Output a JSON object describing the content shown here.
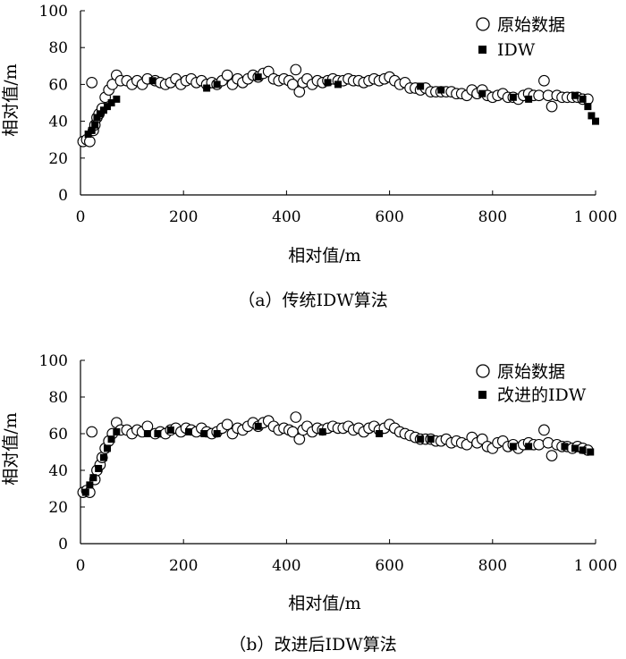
{
  "figure_captions": {
    "a": "（a）传统IDW算法",
    "b": "（b）改进后IDW算法"
  },
  "chart_data": [
    {
      "type": "scatter",
      "title": "（a）传统IDW算法",
      "xlabel": "相对值/m",
      "ylabel": "相对值/m",
      "xlim": [
        0,
        1000
      ],
      "ylim": [
        0,
        100
      ],
      "x_ticks": [
        "0",
        "200",
        "400",
        "600",
        "800",
        "1 000"
      ],
      "y_ticks": [
        "0",
        "20",
        "40",
        "60",
        "80",
        "100"
      ],
      "legend": [
        "原始数据",
        "IDW"
      ],
      "series": [
        {
          "name": "原始数据",
          "marker": "open-circle",
          "points": [
            [
              5,
              29
            ],
            [
              12,
              30
            ],
            [
              18,
              29
            ],
            [
              22,
              61
            ],
            [
              25,
              35
            ],
            [
              28,
              38
            ],
            [
              32,
              42
            ],
            [
              36,
              44
            ],
            [
              42,
              47
            ],
            [
              48,
              53
            ],
            [
              55,
              57
            ],
            [
              62,
              60
            ],
            [
              70,
              65
            ],
            [
              78,
              62
            ],
            [
              90,
              62
            ],
            [
              100,
              60
            ],
            [
              110,
              62
            ],
            [
              120,
              60
            ],
            [
              130,
              63
            ],
            [
              145,
              62
            ],
            [
              155,
              61
            ],
            [
              165,
              60
            ],
            [
              175,
              61
            ],
            [
              185,
              63
            ],
            [
              195,
              60
            ],
            [
              205,
              62
            ],
            [
              215,
              63
            ],
            [
              225,
              61
            ],
            [
              235,
              62
            ],
            [
              245,
              60
            ],
            [
              255,
              61
            ],
            [
              265,
              60
            ],
            [
              275,
              62
            ],
            [
              285,
              65
            ],
            [
              295,
              60
            ],
            [
              305,
              63
            ],
            [
              315,
              61
            ],
            [
              325,
              63
            ],
            [
              335,
              65
            ],
            [
              345,
              64
            ],
            [
              355,
              66
            ],
            [
              365,
              67
            ],
            [
              375,
              63
            ],
            [
              385,
              62
            ],
            [
              395,
              63
            ],
            [
              405,
              62
            ],
            [
              412,
              60
            ],
            [
              418,
              68
            ],
            [
              425,
              56
            ],
            [
              432,
              61
            ],
            [
              440,
              63
            ],
            [
              450,
              60
            ],
            [
              460,
              62
            ],
            [
              470,
              61
            ],
            [
              480,
              62
            ],
            [
              490,
              63
            ],
            [
              500,
              62
            ],
            [
              510,
              62
            ],
            [
              520,
              63
            ],
            [
              530,
              62
            ],
            [
              540,
              62
            ],
            [
              550,
              61
            ],
            [
              560,
              62
            ],
            [
              570,
              63
            ],
            [
              580,
              62
            ],
            [
              590,
              63
            ],
            [
              600,
              64
            ],
            [
              610,
              62
            ],
            [
              620,
              60
            ],
            [
              630,
              61
            ],
            [
              640,
              58
            ],
            [
              650,
              58
            ],
            [
              660,
              57
            ],
            [
              670,
              58
            ],
            [
              680,
              56
            ],
            [
              690,
              56
            ],
            [
              700,
              56
            ],
            [
              710,
              56
            ],
            [
              720,
              56
            ],
            [
              730,
              55
            ],
            [
              740,
              55
            ],
            [
              750,
              54
            ],
            [
              760,
              57
            ],
            [
              770,
              55
            ],
            [
              780,
              57
            ],
            [
              790,
              54
            ],
            [
              800,
              53
            ],
            [
              810,
              54
            ],
            [
              820,
              55
            ],
            [
              830,
              53
            ],
            [
              840,
              53
            ],
            [
              850,
              52
            ],
            [
              860,
              54
            ],
            [
              870,
              55
            ],
            [
              880,
              54
            ],
            [
              890,
              54
            ],
            [
              900,
              62
            ],
            [
              908,
              54
            ],
            [
              915,
              48
            ],
            [
              925,
              54
            ],
            [
              935,
              53
            ],
            [
              945,
              53
            ],
            [
              955,
              53
            ],
            [
              965,
              53
            ],
            [
              975,
              52
            ],
            [
              985,
              52
            ]
          ]
        },
        {
          "name": "IDW",
          "marker": "filled-square",
          "points": [
            [
              15,
              33
            ],
            [
              22,
              35
            ],
            [
              28,
              38
            ],
            [
              32,
              42
            ],
            [
              38,
              44
            ],
            [
              45,
              46
            ],
            [
              52,
              48
            ],
            [
              60,
              50
            ],
            [
              70,
              52
            ],
            [
              140,
              62
            ],
            [
              245,
              58
            ],
            [
              265,
              60
            ],
            [
              345,
              64
            ],
            [
              480,
              61
            ],
            [
              500,
              60
            ],
            [
              660,
              59
            ],
            [
              700,
              57
            ],
            [
              780,
              55
            ],
            [
              840,
              53
            ],
            [
              870,
              52
            ],
            [
              960,
              54
            ],
            [
              975,
              52
            ],
            [
              985,
              48
            ],
            [
              992,
              43
            ],
            [
              1000,
              40
            ]
          ]
        }
      ]
    },
    {
      "type": "scatter",
      "title": "（b）改进后IDW算法",
      "xlabel": "相对值/m",
      "ylabel": "相对值/m",
      "xlim": [
        0,
        1000
      ],
      "ylim": [
        0,
        100
      ],
      "x_ticks": [
        "0",
        "200",
        "400",
        "600",
        "800",
        "1 000"
      ],
      "y_ticks": [
        "0",
        "20",
        "40",
        "60",
        "80",
        "100"
      ],
      "legend": [
        "原始数据",
        "改进的IDW"
      ],
      "series": [
        {
          "name": "原始数据",
          "marker": "open-circle",
          "points": [
            [
              5,
              28
            ],
            [
              12,
              29
            ],
            [
              18,
              28
            ],
            [
              22,
              61
            ],
            [
              28,
              35
            ],
            [
              32,
              40
            ],
            [
              38,
              43
            ],
            [
              42,
              47
            ],
            [
              48,
              52
            ],
            [
              55,
              56
            ],
            [
              62,
              60
            ],
            [
              70,
              66
            ],
            [
              78,
              62
            ],
            [
              90,
              62
            ],
            [
              100,
              60
            ],
            [
              110,
              62
            ],
            [
              120,
              61
            ],
            [
              130,
              64
            ],
            [
              145,
              60
            ],
            [
              155,
              61
            ],
            [
              165,
              60
            ],
            [
              175,
              62
            ],
            [
              185,
              63
            ],
            [
              195,
              61
            ],
            [
              205,
              63
            ],
            [
              215,
              62
            ],
            [
              225,
              61
            ],
            [
              235,
              63
            ],
            [
              245,
              61
            ],
            [
              255,
              60
            ],
            [
              265,
              61
            ],
            [
              275,
              63
            ],
            [
              285,
              65
            ],
            [
              295,
              60
            ],
            [
              305,
              63
            ],
            [
              315,
              62
            ],
            [
              325,
              64
            ],
            [
              335,
              66
            ],
            [
              345,
              64
            ],
            [
              355,
              66
            ],
            [
              365,
              67
            ],
            [
              375,
              64
            ],
            [
              385,
              62
            ],
            [
              395,
              63
            ],
            [
              405,
              62
            ],
            [
              412,
              61
            ],
            [
              418,
              69
            ],
            [
              425,
              57
            ],
            [
              432,
              62
            ],
            [
              440,
              64
            ],
            [
              450,
              61
            ],
            [
              460,
              63
            ],
            [
              470,
              62
            ],
            [
              480,
              63
            ],
            [
              490,
              64
            ],
            [
              500,
              63
            ],
            [
              510,
              63
            ],
            [
              520,
              64
            ],
            [
              530,
              62
            ],
            [
              540,
              63
            ],
            [
              550,
              61
            ],
            [
              560,
              63
            ],
            [
              570,
              64
            ],
            [
              580,
              62
            ],
            [
              590,
              63
            ],
            [
              600,
              65
            ],
            [
              610,
              63
            ],
            [
              620,
              61
            ],
            [
              630,
              60
            ],
            [
              640,
              59
            ],
            [
              650,
              58
            ],
            [
              660,
              57
            ],
            [
              670,
              57
            ],
            [
              680,
              57
            ],
            [
              690,
              56
            ],
            [
              700,
              56
            ],
            [
              710,
              57
            ],
            [
              720,
              55
            ],
            [
              730,
              56
            ],
            [
              740,
              55
            ],
            [
              750,
              54
            ],
            [
              760,
              58
            ],
            [
              770,
              55
            ],
            [
              780,
              57
            ],
            [
              790,
              53
            ],
            [
              800,
              52
            ],
            [
              810,
              55
            ],
            [
              820,
              56
            ],
            [
              830,
              53
            ],
            [
              840,
              54
            ],
            [
              850,
              52
            ],
            [
              860,
              54
            ],
            [
              870,
              55
            ],
            [
              880,
              54
            ],
            [
              890,
              54
            ],
            [
              900,
              62
            ],
            [
              908,
              55
            ],
            [
              915,
              48
            ],
            [
              925,
              54
            ],
            [
              935,
              53
            ],
            [
              945,
              53
            ],
            [
              955,
              52
            ],
            [
              965,
              53
            ],
            [
              975,
              52
            ],
            [
              985,
              51
            ]
          ]
        },
        {
          "name": "改进的IDW",
          "marker": "filled-square",
          "points": [
            [
              10,
              28
            ],
            [
              18,
              32
            ],
            [
              25,
              36
            ],
            [
              35,
              41
            ],
            [
              45,
              47
            ],
            [
              52,
              52
            ],
            [
              60,
              57
            ],
            [
              70,
              61
            ],
            [
              130,
              60
            ],
            [
              150,
              60
            ],
            [
              175,
              62
            ],
            [
              210,
              61
            ],
            [
              240,
              60
            ],
            [
              265,
              60
            ],
            [
              345,
              64
            ],
            [
              470,
              61
            ],
            [
              580,
              60
            ],
            [
              660,
              57
            ],
            [
              680,
              57
            ],
            [
              840,
              53
            ],
            [
              870,
              53
            ],
            [
              940,
              53
            ],
            [
              960,
              52
            ],
            [
              975,
              51
            ],
            [
              990,
              50
            ]
          ]
        }
      ]
    }
  ]
}
